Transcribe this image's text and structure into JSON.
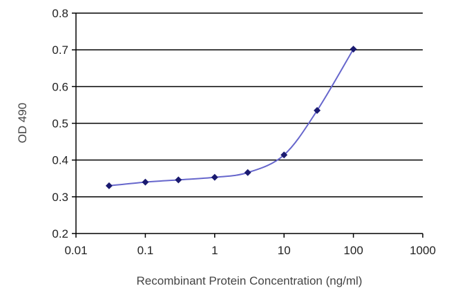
{
  "chart_data": {
    "type": "line",
    "title": "",
    "xlabel": "Recombinant Protein Concentration (ng/ml)",
    "ylabel": "OD 490",
    "x_scale": "log",
    "xlim": [
      0.01,
      1000
    ],
    "ylim": [
      0.2,
      0.8
    ],
    "x_ticks": [
      0.01,
      0.1,
      1,
      10,
      100,
      1000
    ],
    "x_tick_labels": [
      "0.01",
      "0.1",
      "1",
      "10",
      "100",
      "1000"
    ],
    "y_ticks": [
      0.2,
      0.3,
      0.4,
      0.5,
      0.6,
      0.7,
      0.8
    ],
    "y_tick_labels": [
      "0.2",
      "0.3",
      "0.4",
      "0.5",
      "0.6",
      "0.7",
      "0.8"
    ],
    "grid": "horizontal",
    "legend": "none",
    "series": [
      {
        "x": [
          0.03,
          0.1,
          0.3,
          1,
          3,
          10,
          30,
          100
        ],
        "y": [
          0.33,
          0.34,
          0.346,
          0.353,
          0.366,
          0.414,
          0.535,
          0.702
        ],
        "color": "#6666cc",
        "marker_color": "#1a1a70"
      }
    ]
  }
}
